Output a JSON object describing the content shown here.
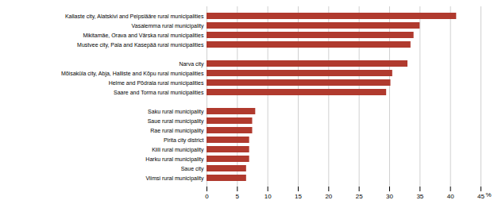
{
  "chart_data": {
    "type": "bar",
    "orientation": "horizontal",
    "categories": [
      "Kallaste city, Alatskivi and Peipsiääre rural municipalities",
      "Vasalemma rural municipality",
      "Mikitamäe, Orava and Värska rural municipalities",
      "Mustvee city, Pala and Kasepää rural municipalities",
      null,
      "Narva city",
      "Mõisaküla city, Abja, Halliste and Kõpu rural municipalities",
      "Helme and Põdrala rural municipalities",
      "Saare and Torma rural municipalities",
      null,
      "Saku rural municipality",
      "Saue rural municipality",
      "Rae rural municipality",
      "Pirita city district",
      "Kiili rural municipality",
      "Harku rural municipality",
      "Saue city",
      "Viimsi rural municipality"
    ],
    "values": [
      41.0,
      35.0,
      34.0,
      33.5,
      0,
      33.0,
      30.5,
      30.2,
      29.5,
      0,
      8.0,
      7.5,
      7.5,
      7.0,
      7.0,
      7.0,
      6.5,
      6.5
    ],
    "color": "#b03a2e",
    "xlabel": "%",
    "xlim": [
      0,
      45
    ],
    "xticks": [
      0,
      5,
      10,
      15,
      20,
      25,
      30,
      35,
      40,
      45
    ],
    "grid": true
  }
}
